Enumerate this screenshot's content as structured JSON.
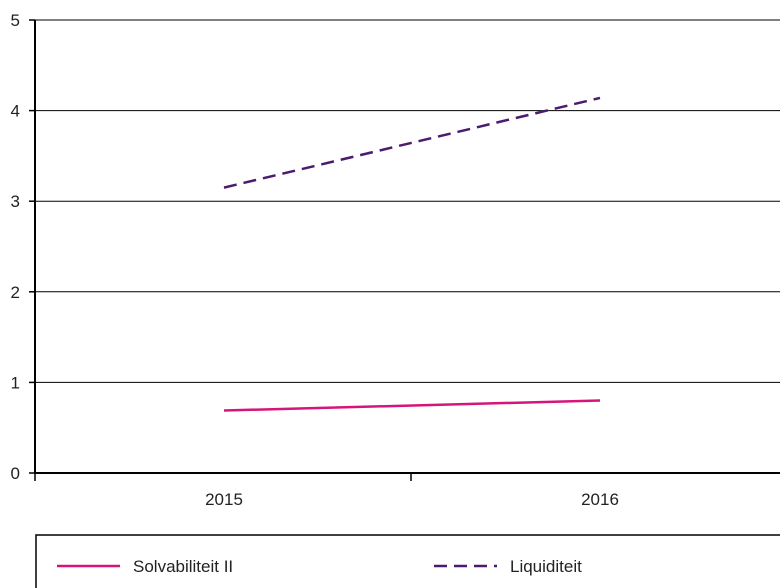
{
  "chart_data": {
    "type": "line",
    "title": "",
    "xlabel": "",
    "ylabel": "",
    "categories": [
      "2015",
      "2016"
    ],
    "ylim": [
      0,
      5
    ],
    "yticks": [
      "0",
      "1",
      "2",
      "3",
      "4",
      "5"
    ],
    "grid": true,
    "legend_position": "bottom",
    "series": [
      {
        "name": "Solvabiliteit II",
        "values": [
          0.69,
          0.8
        ],
        "color": "#d6157a",
        "style": "solid"
      },
      {
        "name": "Liquiditeit",
        "values": [
          3.15,
          4.14
        ],
        "color": "#4b1b6e",
        "style": "dashed"
      }
    ]
  }
}
